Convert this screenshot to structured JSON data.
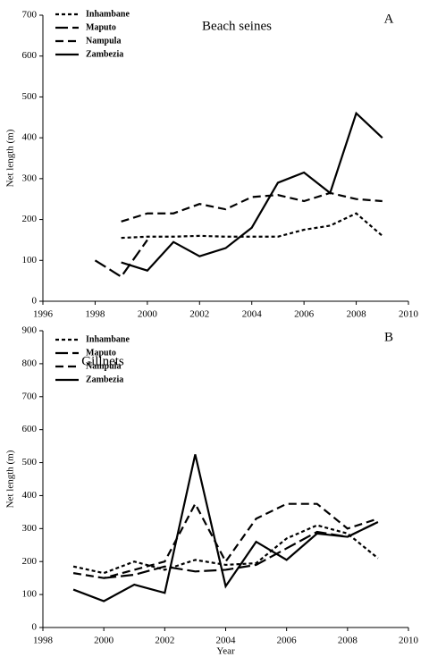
{
  "chart_data": [
    {
      "type": "line",
      "title": "Beach seines",
      "panel_label": "A",
      "y_label": "Net length (m)",
      "x": [
        1998,
        1999,
        2000,
        2001,
        2002,
        2003,
        2004,
        2005,
        2006,
        2007,
        2008,
        2009
      ],
      "series": [
        {
          "name": "Inhambane",
          "color": "#000000",
          "dash": "4,3",
          "values": [
            null,
            155,
            158,
            158,
            160,
            158,
            158,
            158,
            175,
            185,
            215,
            160
          ]
        },
        {
          "name": "Maputo",
          "color": "#000000",
          "dash": "14,5",
          "values": [
            100,
            60,
            150,
            null,
            null,
            null,
            null,
            null,
            null,
            null,
            null,
            null
          ]
        },
        {
          "name": "Nampula",
          "color": "#000000",
          "dash": "9,5",
          "values": [
            null,
            195,
            215,
            215,
            238,
            225,
            255,
            260,
            245,
            265,
            250,
            245
          ]
        },
        {
          "name": "Zambezia",
          "color": "#000000",
          "values": [
            null,
            95,
            75,
            145,
            110,
            130,
            180,
            290,
            315,
            265,
            460,
            400
          ]
        }
      ],
      "xlim": [
        1996,
        2010
      ],
      "xticks": [
        1996,
        1998,
        2000,
        2002,
        2004,
        2006,
        2008,
        2010
      ],
      "ylim": [
        0,
        700
      ],
      "yticks": [
        0,
        100,
        200,
        300,
        400,
        500,
        600,
        700
      ],
      "legend": "upper left"
    },
    {
      "type": "line",
      "title": "Gillnets",
      "panel_label": "B",
      "y_label": "Net length (m)",
      "x_label": "Year",
      "x": [
        1999,
        2000,
        2001,
        2002,
        2003,
        2004,
        2005,
        2006,
        2007,
        2008,
        2009
      ],
      "series": [
        {
          "name": "Inhambane",
          "color": "#000000",
          "dash": "4,3",
          "values": [
            185,
            165,
            200,
            175,
            205,
            190,
            195,
            270,
            310,
            285,
            210
          ]
        },
        {
          "name": "Maputo",
          "color": "#000000",
          "dash": "14,5",
          "values": [
            null,
            150,
            160,
            185,
            170,
            175,
            190,
            240,
            290,
            275,
            320
          ]
        },
        {
          "name": "Nampula",
          "color": "#000000",
          "dash": "9,5",
          "values": [
            165,
            150,
            175,
            200,
            375,
            200,
            330,
            375,
            375,
            300,
            330
          ]
        },
        {
          "name": "Zambezia",
          "color": "#000000",
          "values": [
            115,
            80,
            130,
            105,
            525,
            125,
            260,
            205,
            285,
            275,
            320
          ]
        }
      ],
      "xlim": [
        1998,
        2010
      ],
      "xticks": [
        1998,
        2000,
        2002,
        2004,
        2006,
        2008,
        2010
      ],
      "ylim": [
        0,
        900
      ],
      "yticks": [
        0,
        100,
        200,
        300,
        400,
        500,
        600,
        700,
        800,
        900
      ],
      "legend": "upper left"
    }
  ]
}
